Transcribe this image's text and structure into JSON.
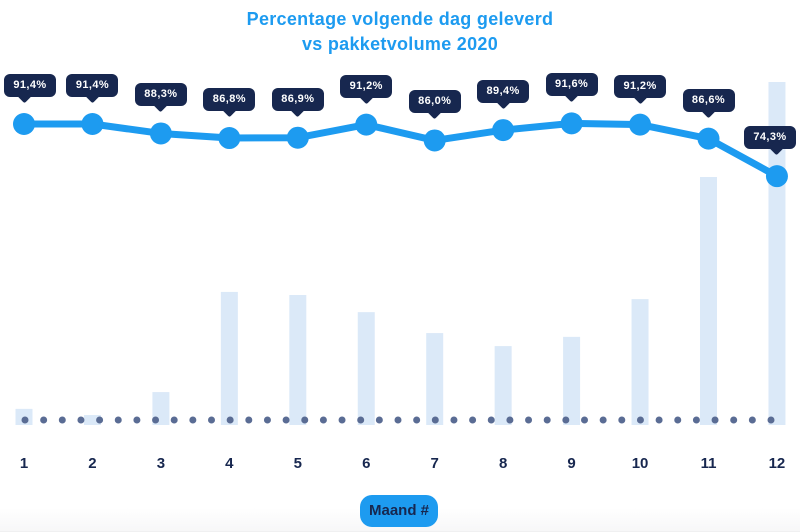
{
  "title": {
    "line1": "Percentage volgende dag geleverd",
    "line2": "vs pakketvolume 2020"
  },
  "x_axis": {
    "title_badge": "Maand #",
    "categories": [
      "1",
      "2",
      "3",
      "4",
      "5",
      "6",
      "7",
      "8",
      "9",
      "10",
      "11",
      "12"
    ]
  },
  "colors": {
    "accent_blue": "#1d9bf0",
    "navy": "#17274f",
    "bar_fill": "#dbe9f8",
    "baseline_dot": "#5a6c94",
    "badge_text": "#ffffff",
    "background": "#ffffff",
    "footer_strip": "#f7f7f8"
  },
  "chart_data": {
    "type": "line+bar",
    "title": "Percentage volgende dag geleverd vs pakketvolume 2020",
    "xlabel": "Maand #",
    "ylabel": "",
    "legend": "none",
    "grid": false,
    "categories": [
      "1",
      "2",
      "3",
      "4",
      "5",
      "6",
      "7",
      "8",
      "9",
      "10",
      "11",
      "12"
    ],
    "series": [
      {
        "name": "Percentage volgende dag geleverd",
        "type": "line",
        "unit": "%",
        "values": [
          91.4,
          91.4,
          88.3,
          86.8,
          86.9,
          91.2,
          86.0,
          89.4,
          91.6,
          91.2,
          86.6,
          74.3
        ],
        "point_labels": [
          "91,4%",
          "91,4%",
          "88,3%",
          "86,8%",
          "86,9%",
          "91,2%",
          "86,0%",
          "89,4%",
          "91,6%",
          "91,2%",
          "86,6%",
          "74,3%"
        ]
      },
      {
        "name": "Pakketvolume 2020",
        "type": "bar",
        "unit": "relative volume, % of max (bar axis unlabeled in image)",
        "values": [
          4.7,
          2.9,
          9.6,
          38.8,
          37.9,
          32.9,
          26.8,
          23.0,
          25.7,
          36.7,
          72.3,
          100
        ]
      }
    ]
  }
}
